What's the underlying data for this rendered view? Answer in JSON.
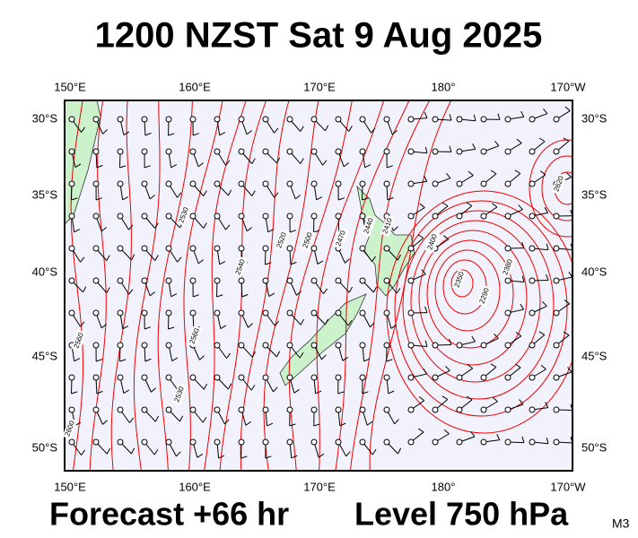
{
  "title": "1200 NZST Sat 9 Aug 2025",
  "map": {
    "lon_labels": [
      "150°E",
      "160°E",
      "170°E",
      "180°",
      "170°W"
    ],
    "lat_labels": [
      "30°S",
      "35°S",
      "40°S",
      "45°S",
      "50°S"
    ],
    "contour_labels": [
      "2530",
      "2560",
      "2540",
      "2560",
      "2520",
      "2500",
      "2470",
      "2440",
      "2410",
      "2400",
      "2350",
      "2380",
      "2290",
      "2620",
      "2600",
      "2530"
    ]
  },
  "footer": {
    "forecast": "Forecast +66 hr",
    "level": "Level 750 hPa",
    "code": "M3"
  }
}
